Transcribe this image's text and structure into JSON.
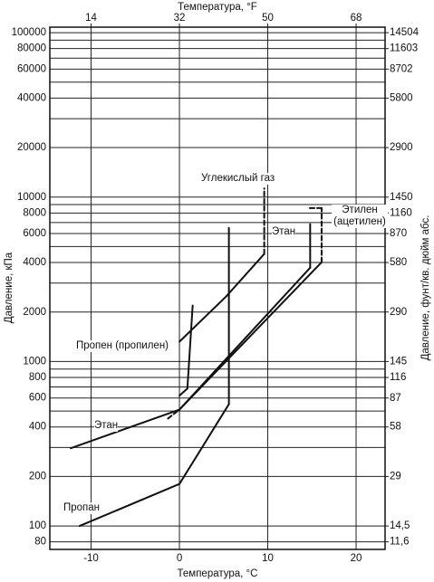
{
  "chart_data": {
    "type": "line",
    "x_label": "Температура, °C",
    "x2_label": "Температура, °F",
    "y_label": "Давление, кПа",
    "y2_label": "Давление, фунт/кв. дюйм абс.",
    "xlim": [
      -14.67,
      23.28
    ],
    "xticks": [
      -10,
      0,
      10,
      20
    ],
    "x2lim": [
      5.6,
      73.9
    ],
    "x2ticks": [
      14,
      32,
      50,
      68
    ],
    "ylim": [
      72,
      108000
    ],
    "yticks": [
      100000,
      80000,
      60000,
      40000,
      20000,
      10000,
      8000,
      6000,
      4000,
      2000,
      1000,
      800,
      600,
      400,
      200,
      100,
      80
    ],
    "y_log": true,
    "y_grid_extra": [
      90000,
      70000,
      50000,
      30000,
      9000,
      7000,
      5000,
      3000,
      900,
      700,
      500,
      300
    ],
    "y2lim": [
      10.44,
      15664
    ],
    "y2ticks": [
      14504,
      11603,
      8702,
      5800,
      2900,
      1450,
      1160,
      870,
      580,
      290,
      145,
      116,
      87,
      58,
      29,
      {
        "value": 14.5,
        "label": "14,5"
      },
      {
        "value": 11.6,
        "label": "11,6"
      }
    ],
    "grid": true,
    "series": [
      {
        "name": "Пропан",
        "color": "#111111",
        "x": [
          -11.3,
          0,
          5.6,
          5.6
        ],
        "values": [
          100,
          180,
          550,
          6500
        ],
        "dashed_segments": []
      },
      {
        "name": "Этан",
        "color": "#111111",
        "x": [
          -12.3,
          0,
          14.8,
          14.8
        ],
        "values": [
          297,
          510,
          3720,
          6850
        ],
        "dashed_segments": []
      },
      {
        "name": "Этилен (ацетилен)",
        "color": "#111111",
        "x": [
          -1.3,
          0,
          16.1,
          16.1,
          14.6
        ],
        "values": [
          450,
          510,
          4020,
          8580,
          8580
        ],
        "dashed_segments": [
          0,
          2,
          3
        ]
      },
      {
        "name": "Пропен (пропилен)",
        "color": "#111111",
        "x": [
          0,
          0.9,
          1.5
        ],
        "values": [
          620,
          685,
          2190
        ],
        "dashed_segments": []
      },
      {
        "name": "Углекислый газ",
        "color": "#111111",
        "x": [
          0,
          5.3,
          9.6,
          9.6
        ],
        "values": [
          1320,
          2490,
          4510,
          11300
        ],
        "dashed_segments": [
          2
        ]
      }
    ],
    "annotations": [
      "Этан"
    ]
  }
}
